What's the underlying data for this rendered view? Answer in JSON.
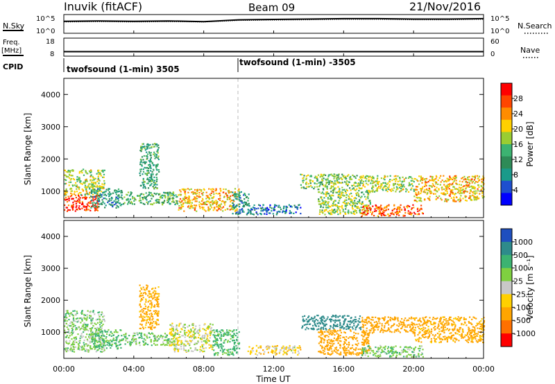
{
  "header": {
    "station": "Inuvik (fitACF)",
    "beam": "Beam 09",
    "date": "21/Nov/2016"
  },
  "param_panels": {
    "nsky_label": "N.Sky",
    "nsearch_label": "N.Search",
    "noise_ticks": [
      "10^5",
      "10^0"
    ],
    "freq_label_1": "Freq.",
    "freq_label_2": "[MHz]",
    "freq_ticks": [
      "18",
      "8"
    ],
    "nave_label": "Nave",
    "nave_ticks": [
      "60",
      "0"
    ],
    "cpid_label": "CPID",
    "cpid_segments": [
      {
        "label": "twofsound (1-min) 3505",
        "start_hour": 0,
        "end_hour": 10
      },
      {
        "label": "twofsound (1-min) -3505",
        "start_hour": 10,
        "end_hour": 24
      }
    ]
  },
  "axes": {
    "y_label": "Slant Range [km]",
    "y_ticks": [
      "4000",
      "3000",
      "2000",
      "1000"
    ],
    "x_label": "Time UT",
    "x_ticks": [
      "00:00",
      "04:00",
      "08:00",
      "12:00",
      "16:00",
      "20:00",
      "00:00"
    ]
  },
  "power_colorbar": {
    "label": "Power [dB]",
    "ticks": [
      "28",
      "24",
      "20",
      "16",
      "12",
      "8",
      "4"
    ],
    "colors": [
      "#ff0000",
      "#ff4500",
      "#ff8c00",
      "#ffd000",
      "#9acd32",
      "#3cb371",
      "#2e8b57",
      "#1a9a8a",
      "#1e4fcf",
      "#0000ff"
    ]
  },
  "velocity_colorbar": {
    "label": "Velocity [m s⁻¹]",
    "ticks": [
      "1000",
      "500",
      "100",
      "25",
      "-25",
      "-100",
      "-500",
      "-1000"
    ],
    "colors": [
      "#1f4fbf",
      "#2e8b8b",
      "#3cb371",
      "#7fd040",
      "#c8c8c8",
      "#ffd000",
      "#ffa500",
      "#ff7000",
      "#ff0000"
    ]
  },
  "chart_data": [
    {
      "type": "line",
      "title": "N.Sky / N.Search noise",
      "x_hours": [
        0,
        2,
        4,
        6,
        8,
        10,
        12,
        14,
        16,
        18,
        20,
        22,
        24
      ],
      "series": [
        {
          "name": "N.Sky",
          "log10_values": [
            3.2,
            3.3,
            3.2,
            3.3,
            3.1,
            3.6,
            3.7,
            3.8,
            3.9,
            3.9,
            3.8,
            3.8,
            3.9
          ]
        },
        {
          "name": "N.Search",
          "log10_values": [
            3.0,
            3.1,
            3.0,
            3.1,
            3.0,
            3.4,
            3.5,
            3.6,
            3.7,
            3.7,
            3.6,
            3.6,
            3.7
          ]
        }
      ],
      "ylim_log10": [
        0,
        5
      ]
    },
    {
      "type": "line",
      "title": "Freq. / Nave",
      "x_hours": [
        0,
        24
      ],
      "series": [
        {
          "name": "Freq. [MHz]",
          "values": [
            10.5,
            10.5
          ]
        },
        {
          "name": "Nave",
          "values": [
            15,
            15
          ]
        }
      ],
      "freq_ylim": [
        8,
        18
      ],
      "nave_ylim": [
        0,
        60
      ]
    },
    {
      "type": "heatmap",
      "title": "Power [dB]",
      "xlabel": "Time UT",
      "ylabel": "Slant Range [km]",
      "xlim_hours": [
        0,
        24
      ],
      "ylim_km": [
        180,
        4500
      ],
      "clim": [
        0,
        30
      ],
      "blobs": [
        {
          "t0": 0.0,
          "t1": 2.0,
          "r0": 400,
          "r1": 900,
          "value": 27
        },
        {
          "t0": 0.0,
          "t1": 2.3,
          "r0": 900,
          "r1": 1700,
          "value": 17
        },
        {
          "t0": 1.5,
          "t1": 3.3,
          "r0": 500,
          "r1": 1100,
          "value": 10
        },
        {
          "t0": 3.3,
          "t1": 6.5,
          "r0": 600,
          "r1": 1000,
          "value": 13
        },
        {
          "t0": 6.5,
          "t1": 10.0,
          "r0": 400,
          "r1": 1100,
          "value": 20
        },
        {
          "t0": 4.3,
          "t1": 5.4,
          "r0": 1100,
          "r1": 2500,
          "value": 11
        },
        {
          "t0": 9.6,
          "t1": 10.6,
          "r0": 300,
          "r1": 1000,
          "value": 9
        },
        {
          "t0": 10.5,
          "t1": 13.5,
          "r0": 300,
          "r1": 600,
          "value": 6
        },
        {
          "t0": 13.5,
          "t1": 17.0,
          "r0": 1100,
          "r1": 1550,
          "value": 15
        },
        {
          "t0": 14.5,
          "t1": 17.5,
          "r0": 300,
          "r1": 1100,
          "value": 16
        },
        {
          "t0": 17.0,
          "t1": 20.5,
          "r0": 250,
          "r1": 600,
          "value": 25
        },
        {
          "t0": 17.0,
          "t1": 20.0,
          "r0": 1000,
          "r1": 1500,
          "value": 17
        },
        {
          "t0": 20.0,
          "t1": 24.0,
          "r0": 700,
          "r1": 1500,
          "value": 20
        }
      ]
    },
    {
      "type": "heatmap",
      "title": "Velocity",
      "xlabel": "Time UT",
      "ylabel": "Slant Range [km]",
      "xlim_hours": [
        0,
        24
      ],
      "ylim_km": [
        180,
        4500
      ],
      "clim": [
        -1000,
        1000
      ],
      "blobs": [
        {
          "t0": 0.0,
          "t1": 2.3,
          "r0": 400,
          "r1": 1700,
          "value": 60
        },
        {
          "t0": 1.5,
          "t1": 3.3,
          "r0": 500,
          "r1": 1100,
          "value": 120
        },
        {
          "t0": 3.3,
          "t1": 6.5,
          "r0": 600,
          "r1": 1000,
          "value": 70
        },
        {
          "t0": 6.0,
          "t1": 8.5,
          "r0": 400,
          "r1": 1300,
          "value": 0
        },
        {
          "t0": 8.5,
          "t1": 10.0,
          "r0": 300,
          "r1": 1100,
          "value": 150
        },
        {
          "t0": 4.3,
          "t1": 5.4,
          "r0": 1100,
          "r1": 2500,
          "value": -150
        },
        {
          "t0": 10.5,
          "t1": 13.5,
          "r0": 300,
          "r1": 600,
          "value": -40
        },
        {
          "t0": 13.5,
          "t1": 17.0,
          "r0": 1100,
          "r1": 1550,
          "value": 600
        },
        {
          "t0": 14.5,
          "t1": 17.5,
          "r0": 300,
          "r1": 1100,
          "value": -300
        },
        {
          "t0": 17.0,
          "t1": 20.5,
          "r0": 250,
          "r1": 600,
          "value": 80
        },
        {
          "t0": 17.0,
          "t1": 20.0,
          "r0": 1000,
          "r1": 1500,
          "value": -200
        },
        {
          "t0": 20.0,
          "t1": 24.0,
          "r0": 700,
          "r1": 1500,
          "value": -150
        }
      ]
    }
  ]
}
